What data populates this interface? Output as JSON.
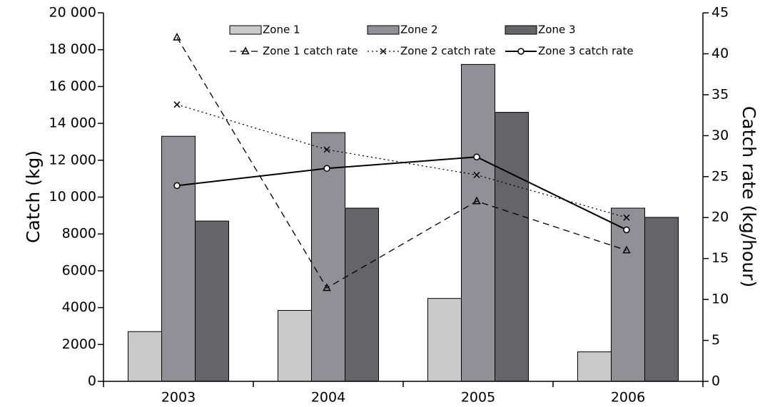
{
  "chart_data": {
    "type": "bar-line",
    "y_label": "Catch (kg)",
    "y2_label": "Catch rate (kg/hour)",
    "categories": [
      "2003",
      "2004",
      "2005",
      "2006"
    ],
    "ylim": [
      0,
      20000
    ],
    "yticks": [
      0,
      2000,
      4000,
      6000,
      8000,
      {
        "value": 10000,
        "label": "10 000"
      },
      {
        "value": 12000,
        "label": "12 000"
      },
      {
        "value": 14000,
        "label": "14 000"
      },
      {
        "value": 16000,
        "label": "16 000"
      },
      {
        "value": 18000,
        "label": "18 000"
      },
      {
        "value": 20000,
        "label": "20 000"
      }
    ],
    "y2lim": [
      0,
      45
    ],
    "y2ticks": [
      0,
      5,
      10,
      15,
      20,
      25,
      30,
      35,
      40,
      45
    ],
    "series": [
      {
        "name": "Zone 1",
        "type": "bar",
        "color": "#c9c9c9",
        "values": [
          2700,
          3850,
          4500,
          1600
        ]
      },
      {
        "name": "Zone 2",
        "type": "bar",
        "color": "#909096",
        "values": [
          13300,
          13500,
          17200,
          9400
        ]
      },
      {
        "name": "Zone 3",
        "type": "bar",
        "color": "#646469",
        "values": [
          8700,
          9400,
          14600,
          8900
        ]
      },
      {
        "name": "Zone 1 catch rate",
        "type": "line",
        "axis": "y2",
        "color": "#000000",
        "dash": "dashed",
        "marker": "triangle",
        "values": [
          42.0,
          11.4,
          22.0,
          16.0
        ]
      },
      {
        "name": "Zone 2 catch rate",
        "type": "line",
        "axis": "y2",
        "color": "#000000",
        "dash": "dotted",
        "marker": "x",
        "values": [
          33.8,
          28.3,
          25.2,
          20.0
        ]
      },
      {
        "name": "Zone 3 catch rate",
        "type": "line",
        "axis": "y2",
        "color": "#000000",
        "dash": "solid",
        "marker": "circle",
        "values": [
          23.9,
          26.0,
          27.4,
          18.5
        ]
      }
    ]
  }
}
